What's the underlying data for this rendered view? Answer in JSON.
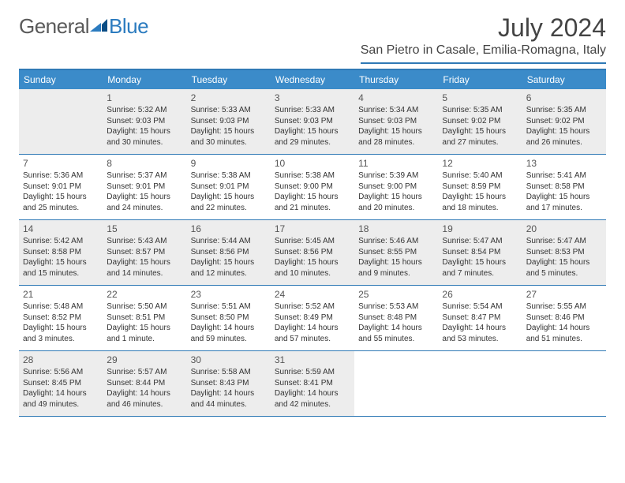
{
  "logo": {
    "text1": "General",
    "text2": "Blue"
  },
  "title": "July 2024",
  "location": "San Pietro in Casale, Emilia-Romagna, Italy",
  "colors": {
    "accent": "#2f79b5",
    "headerBar": "#3b8bc9",
    "shaded": "#ededed",
    "text": "#333333",
    "titleText": "#444444"
  },
  "dayNames": [
    "Sunday",
    "Monday",
    "Tuesday",
    "Wednesday",
    "Thursday",
    "Friday",
    "Saturday"
  ],
  "weeks": [
    [
      {
        "shaded": true
      },
      {
        "n": "1",
        "shaded": true,
        "sr": "Sunrise: 5:32 AM",
        "ss": "Sunset: 9:03 PM",
        "dl": "Daylight: 15 hours and 30 minutes."
      },
      {
        "n": "2",
        "shaded": true,
        "sr": "Sunrise: 5:33 AM",
        "ss": "Sunset: 9:03 PM",
        "dl": "Daylight: 15 hours and 30 minutes."
      },
      {
        "n": "3",
        "shaded": true,
        "sr": "Sunrise: 5:33 AM",
        "ss": "Sunset: 9:03 PM",
        "dl": "Daylight: 15 hours and 29 minutes."
      },
      {
        "n": "4",
        "shaded": true,
        "sr": "Sunrise: 5:34 AM",
        "ss": "Sunset: 9:03 PM",
        "dl": "Daylight: 15 hours and 28 minutes."
      },
      {
        "n": "5",
        "shaded": true,
        "sr": "Sunrise: 5:35 AM",
        "ss": "Sunset: 9:02 PM",
        "dl": "Daylight: 15 hours and 27 minutes."
      },
      {
        "n": "6",
        "shaded": true,
        "sr": "Sunrise: 5:35 AM",
        "ss": "Sunset: 9:02 PM",
        "dl": "Daylight: 15 hours and 26 minutes."
      }
    ],
    [
      {
        "n": "7",
        "sr": "Sunrise: 5:36 AM",
        "ss": "Sunset: 9:01 PM",
        "dl": "Daylight: 15 hours and 25 minutes."
      },
      {
        "n": "8",
        "sr": "Sunrise: 5:37 AM",
        "ss": "Sunset: 9:01 PM",
        "dl": "Daylight: 15 hours and 24 minutes."
      },
      {
        "n": "9",
        "sr": "Sunrise: 5:38 AM",
        "ss": "Sunset: 9:01 PM",
        "dl": "Daylight: 15 hours and 22 minutes."
      },
      {
        "n": "10",
        "sr": "Sunrise: 5:38 AM",
        "ss": "Sunset: 9:00 PM",
        "dl": "Daylight: 15 hours and 21 minutes."
      },
      {
        "n": "11",
        "sr": "Sunrise: 5:39 AM",
        "ss": "Sunset: 9:00 PM",
        "dl": "Daylight: 15 hours and 20 minutes."
      },
      {
        "n": "12",
        "sr": "Sunrise: 5:40 AM",
        "ss": "Sunset: 8:59 PM",
        "dl": "Daylight: 15 hours and 18 minutes."
      },
      {
        "n": "13",
        "sr": "Sunrise: 5:41 AM",
        "ss": "Sunset: 8:58 PM",
        "dl": "Daylight: 15 hours and 17 minutes."
      }
    ],
    [
      {
        "n": "14",
        "shaded": true,
        "sr": "Sunrise: 5:42 AM",
        "ss": "Sunset: 8:58 PM",
        "dl": "Daylight: 15 hours and 15 minutes."
      },
      {
        "n": "15",
        "shaded": true,
        "sr": "Sunrise: 5:43 AM",
        "ss": "Sunset: 8:57 PM",
        "dl": "Daylight: 15 hours and 14 minutes."
      },
      {
        "n": "16",
        "shaded": true,
        "sr": "Sunrise: 5:44 AM",
        "ss": "Sunset: 8:56 PM",
        "dl": "Daylight: 15 hours and 12 minutes."
      },
      {
        "n": "17",
        "shaded": true,
        "sr": "Sunrise: 5:45 AM",
        "ss": "Sunset: 8:56 PM",
        "dl": "Daylight: 15 hours and 10 minutes."
      },
      {
        "n": "18",
        "shaded": true,
        "sr": "Sunrise: 5:46 AM",
        "ss": "Sunset: 8:55 PM",
        "dl": "Daylight: 15 hours and 9 minutes."
      },
      {
        "n": "19",
        "shaded": true,
        "sr": "Sunrise: 5:47 AM",
        "ss": "Sunset: 8:54 PM",
        "dl": "Daylight: 15 hours and 7 minutes."
      },
      {
        "n": "20",
        "shaded": true,
        "sr": "Sunrise: 5:47 AM",
        "ss": "Sunset: 8:53 PM",
        "dl": "Daylight: 15 hours and 5 minutes."
      }
    ],
    [
      {
        "n": "21",
        "sr": "Sunrise: 5:48 AM",
        "ss": "Sunset: 8:52 PM",
        "dl": "Daylight: 15 hours and 3 minutes."
      },
      {
        "n": "22",
        "sr": "Sunrise: 5:50 AM",
        "ss": "Sunset: 8:51 PM",
        "dl": "Daylight: 15 hours and 1 minute."
      },
      {
        "n": "23",
        "sr": "Sunrise: 5:51 AM",
        "ss": "Sunset: 8:50 PM",
        "dl": "Daylight: 14 hours and 59 minutes."
      },
      {
        "n": "24",
        "sr": "Sunrise: 5:52 AM",
        "ss": "Sunset: 8:49 PM",
        "dl": "Daylight: 14 hours and 57 minutes."
      },
      {
        "n": "25",
        "sr": "Sunrise: 5:53 AM",
        "ss": "Sunset: 8:48 PM",
        "dl": "Daylight: 14 hours and 55 minutes."
      },
      {
        "n": "26",
        "sr": "Sunrise: 5:54 AM",
        "ss": "Sunset: 8:47 PM",
        "dl": "Daylight: 14 hours and 53 minutes."
      },
      {
        "n": "27",
        "sr": "Sunrise: 5:55 AM",
        "ss": "Sunset: 8:46 PM",
        "dl": "Daylight: 14 hours and 51 minutes."
      }
    ],
    [
      {
        "n": "28",
        "shaded": true,
        "sr": "Sunrise: 5:56 AM",
        "ss": "Sunset: 8:45 PM",
        "dl": "Daylight: 14 hours and 49 minutes."
      },
      {
        "n": "29",
        "shaded": true,
        "sr": "Sunrise: 5:57 AM",
        "ss": "Sunset: 8:44 PM",
        "dl": "Daylight: 14 hours and 46 minutes."
      },
      {
        "n": "30",
        "shaded": true,
        "sr": "Sunrise: 5:58 AM",
        "ss": "Sunset: 8:43 PM",
        "dl": "Daylight: 14 hours and 44 minutes."
      },
      {
        "n": "31",
        "shaded": true,
        "sr": "Sunrise: 5:59 AM",
        "ss": "Sunset: 8:41 PM",
        "dl": "Daylight: 14 hours and 42 minutes."
      },
      {},
      {},
      {}
    ]
  ]
}
